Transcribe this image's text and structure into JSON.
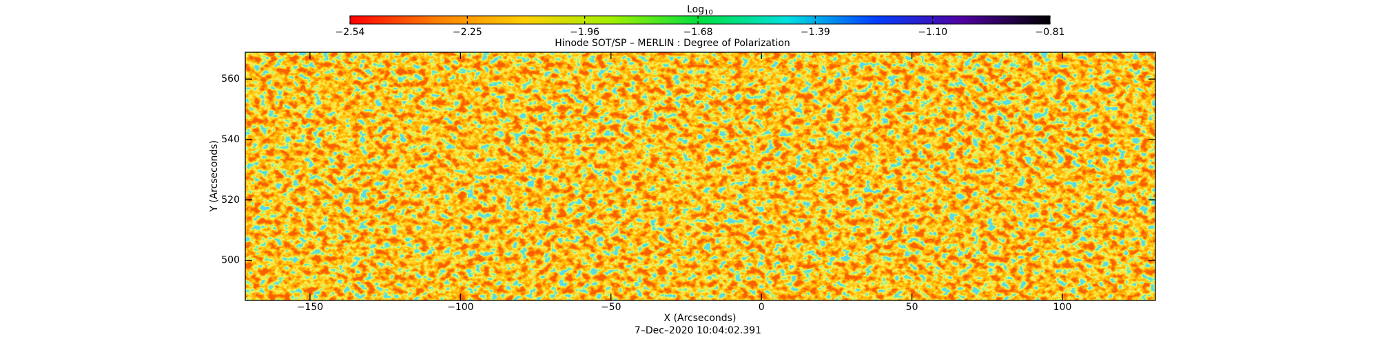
{
  "chart_data": {
    "type": "heatmap",
    "title": "Hinode SOT/SP – MERLIN : Degree of Polarization",
    "x_label": "X (Arcseconds)",
    "y_label": "Y (Arcseconds)",
    "footer": "7–Dec–2020 10:04:02.391",
    "xlim": [
      -171.5,
      130.9
    ],
    "ylim": [
      486.7,
      568.9
    ],
    "xticks": [
      -150,
      -100,
      -50,
      0,
      50,
      100
    ],
    "yticks": [
      500,
      520,
      540,
      560
    ],
    "colorbar": {
      "label": {
        "base": "Log",
        "subscript": "10"
      },
      "range": [
        -2.54,
        -0.81
      ],
      "ticks": [
        -2.54,
        -2.25,
        -1.96,
        -1.68,
        -1.39,
        {
          "value": -1.1,
          "label": "-1.10"
        },
        -0.81
      ],
      "colors": [
        "#ff0000",
        "#ff8000",
        "#ffd000",
        "#a0f000",
        "#00e040",
        "#00e0e0",
        "#0040ff",
        "#5000a0",
        "#000000"
      ]
    }
  }
}
